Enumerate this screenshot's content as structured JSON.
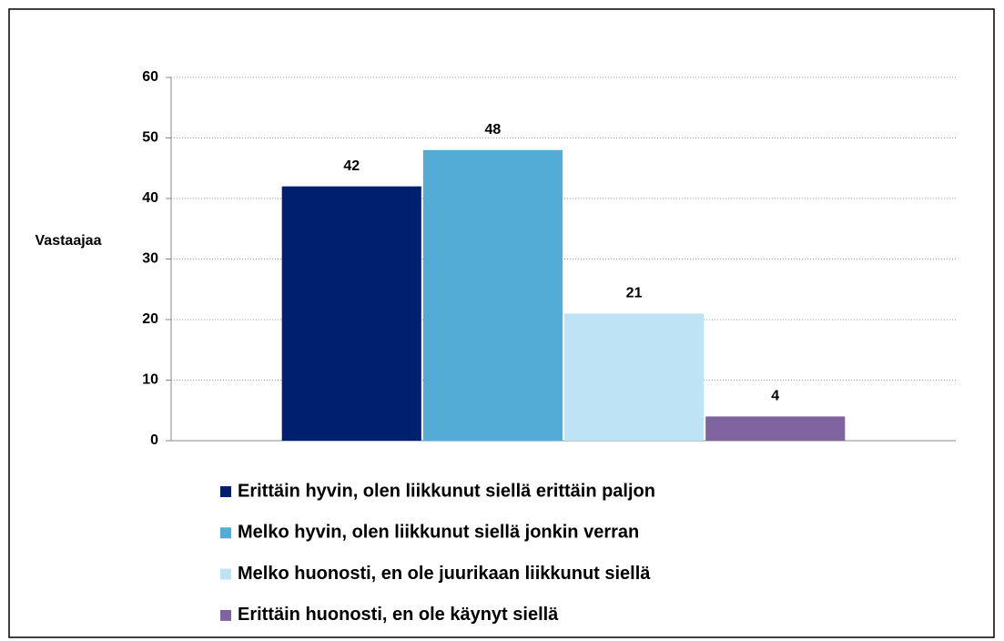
{
  "chart_data": {
    "type": "bar",
    "y_label": "Vastaajaa",
    "categories": [
      null
    ],
    "series": [
      {
        "name": "Erittäin hyvin, olen liikkunut siellä erittäin paljon",
        "color": "#001f6e",
        "values": [
          42
        ]
      },
      {
        "name": "Melko hyvin, olen liikkunut siellä jonkin verran",
        "color": "#52acd6",
        "values": [
          48
        ]
      },
      {
        "name": "Melko huonosti, en ole juurikaan liikkunut siellä",
        "color": "#bde3f5",
        "values": [
          21
        ]
      },
      {
        "name": "Erittäin huonosti, en ole käynyt siellä",
        "color": "#8064a2",
        "values": [
          4
        ]
      }
    ],
    "ylim": [
      0,
      60
    ],
    "yticks": [
      0,
      10,
      20,
      30,
      40,
      50,
      60
    ],
    "grid": true,
    "legend": "bottom"
  }
}
